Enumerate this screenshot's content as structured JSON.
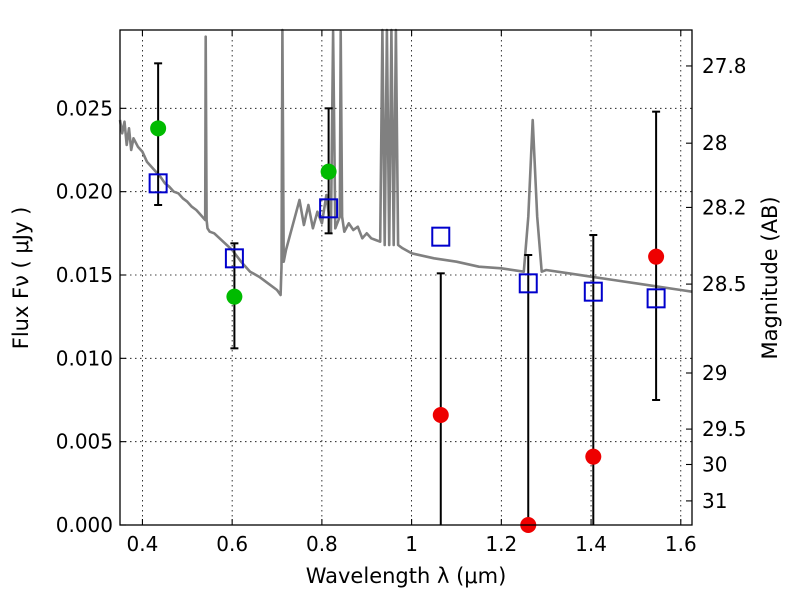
{
  "chart_data": {
    "type": "scatter",
    "title": "",
    "xlabel": "Wavelength  λ (μm)",
    "ylabel": "Flux  Fν  ( μJy )",
    "y2label": "Magnitude (AB)",
    "xlim": [
      0.35,
      1.625
    ],
    "ylim": [
      0.0,
      0.0297
    ],
    "grid": true,
    "x_ticks": [
      0.4,
      0.6,
      0.8,
      1.0,
      1.2,
      1.4,
      1.6
    ],
    "x_tick_labels": [
      "0.4",
      "0.6",
      "0.8",
      "1",
      "1.2",
      "1.4",
      "1.6"
    ],
    "y_ticks": [
      0.0,
      0.005,
      0.01,
      0.015,
      0.02,
      0.025
    ],
    "y_tick_labels": [
      "0.000",
      "0.005",
      "0.010",
      "0.015",
      "0.020",
      "0.025"
    ],
    "y2_ticks": [
      {
        "mag": 27.8,
        "label": "27.8"
      },
      {
        "mag": 28.0,
        "label": "28"
      },
      {
        "mag": 28.2,
        "label": "28.2"
      },
      {
        "mag": 28.5,
        "label": "28.5"
      },
      {
        "mag": 29.0,
        "label": "29"
      },
      {
        "mag": 29.5,
        "label": "29.5"
      },
      {
        "mag": 30.0,
        "label": "30"
      },
      {
        "mag": 31.0,
        "label": "31"
      }
    ],
    "colors": {
      "model": "#808080",
      "green": "#00bb00",
      "red": "#ee0000",
      "box": "#0000cc",
      "errorbar": "#000000"
    },
    "model_spectrum": {
      "x": [
        0.35,
        0.355,
        0.36,
        0.365,
        0.37,
        0.375,
        0.38,
        0.39,
        0.4,
        0.41,
        0.42,
        0.43,
        0.44,
        0.45,
        0.46,
        0.47,
        0.48,
        0.49,
        0.5,
        0.51,
        0.52,
        0.53,
        0.54,
        0.541,
        0.543,
        0.545,
        0.55,
        0.56,
        0.58,
        0.6,
        0.62,
        0.64,
        0.66,
        0.68,
        0.7,
        0.708,
        0.71,
        0.712,
        0.715,
        0.72,
        0.73,
        0.74,
        0.75,
        0.76,
        0.77,
        0.78,
        0.79,
        0.8,
        0.81,
        0.82,
        0.825,
        0.83,
        0.84,
        0.842,
        0.845,
        0.85,
        0.86,
        0.87,
        0.88,
        0.89,
        0.9,
        0.91,
        0.92,
        0.93,
        0.935,
        0.94,
        0.945,
        0.95,
        0.955,
        0.96,
        0.965,
        0.97,
        0.98,
        1.0,
        1.05,
        1.1,
        1.15,
        1.2,
        1.25,
        1.26,
        1.27,
        1.28,
        1.29,
        1.3,
        1.35,
        1.4,
        1.45,
        1.5,
        1.55,
        1.6,
        1.625
      ],
      "y": [
        0.0243,
        0.0235,
        0.0242,
        0.0228,
        0.0238,
        0.0225,
        0.0232,
        0.0227,
        0.0224,
        0.0218,
        0.0215,
        0.0212,
        0.0209,
        0.0205,
        0.0203,
        0.02,
        0.0199,
        0.0196,
        0.0194,
        0.0191,
        0.0189,
        0.0186,
        0.0183,
        0.0293,
        0.0183,
        0.0178,
        0.0176,
        0.0175,
        0.017,
        0.0165,
        0.0158,
        0.0152,
        0.0149,
        0.0145,
        0.0141,
        0.0138,
        0.0155,
        0.0298,
        0.0158,
        0.0165,
        0.0175,
        0.0185,
        0.0195,
        0.018,
        0.0192,
        0.0178,
        0.0188,
        0.0181,
        0.0198,
        0.0176,
        0.0296,
        0.0178,
        0.0185,
        0.0296,
        0.0185,
        0.0176,
        0.0181,
        0.0177,
        0.0179,
        0.0172,
        0.0175,
        0.0172,
        0.0171,
        0.017,
        0.0298,
        0.0168,
        0.0298,
        0.0168,
        0.0298,
        0.0168,
        0.0298,
        0.0168,
        0.0166,
        0.0163,
        0.016,
        0.0158,
        0.0155,
        0.0154,
        0.0152,
        0.0185,
        0.0243,
        0.0185,
        0.0152,
        0.0153,
        0.0151,
        0.0149,
        0.0147,
        0.0145,
        0.0143,
        0.0141,
        0.014
      ]
    },
    "series": [
      {
        "marker": "circle",
        "color_key": "green",
        "points": [
          {
            "x": 0.435,
            "y": 0.0238,
            "yerr_low": 0.0192,
            "yerr_high": 0.0277
          },
          {
            "x": 0.605,
            "y": 0.0137,
            "yerr_low": 0.0106,
            "yerr_high": 0.0169
          },
          {
            "x": 0.815,
            "y": 0.0212,
            "yerr_low": 0.0175,
            "yerr_high": 0.025
          }
        ]
      },
      {
        "marker": "circle",
        "color_key": "red",
        "points": [
          {
            "x": 1.065,
            "y": 0.0066,
            "yerr_low": 0.0,
            "yerr_high": 0.0151
          },
          {
            "x": 1.26,
            "y": 0.0,
            "yerr_low": 0.0,
            "yerr_high": 0.0162
          },
          {
            "x": 1.405,
            "y": 0.0041,
            "yerr_low": 0.0,
            "yerr_high": 0.0174
          },
          {
            "x": 1.545,
            "y": 0.0161,
            "yerr_low": 0.0075,
            "yerr_high": 0.0248
          }
        ]
      },
      {
        "marker": "square",
        "color_key": "box",
        "points": [
          {
            "x": 0.435,
            "y": 0.0205
          },
          {
            "x": 0.605,
            "y": 0.016
          },
          {
            "x": 0.815,
            "y": 0.019
          },
          {
            "x": 1.065,
            "y": 0.0173
          },
          {
            "x": 1.26,
            "y": 0.0145
          },
          {
            "x": 1.405,
            "y": 0.014
          },
          {
            "x": 1.545,
            "y": 0.0136
          }
        ]
      }
    ]
  }
}
